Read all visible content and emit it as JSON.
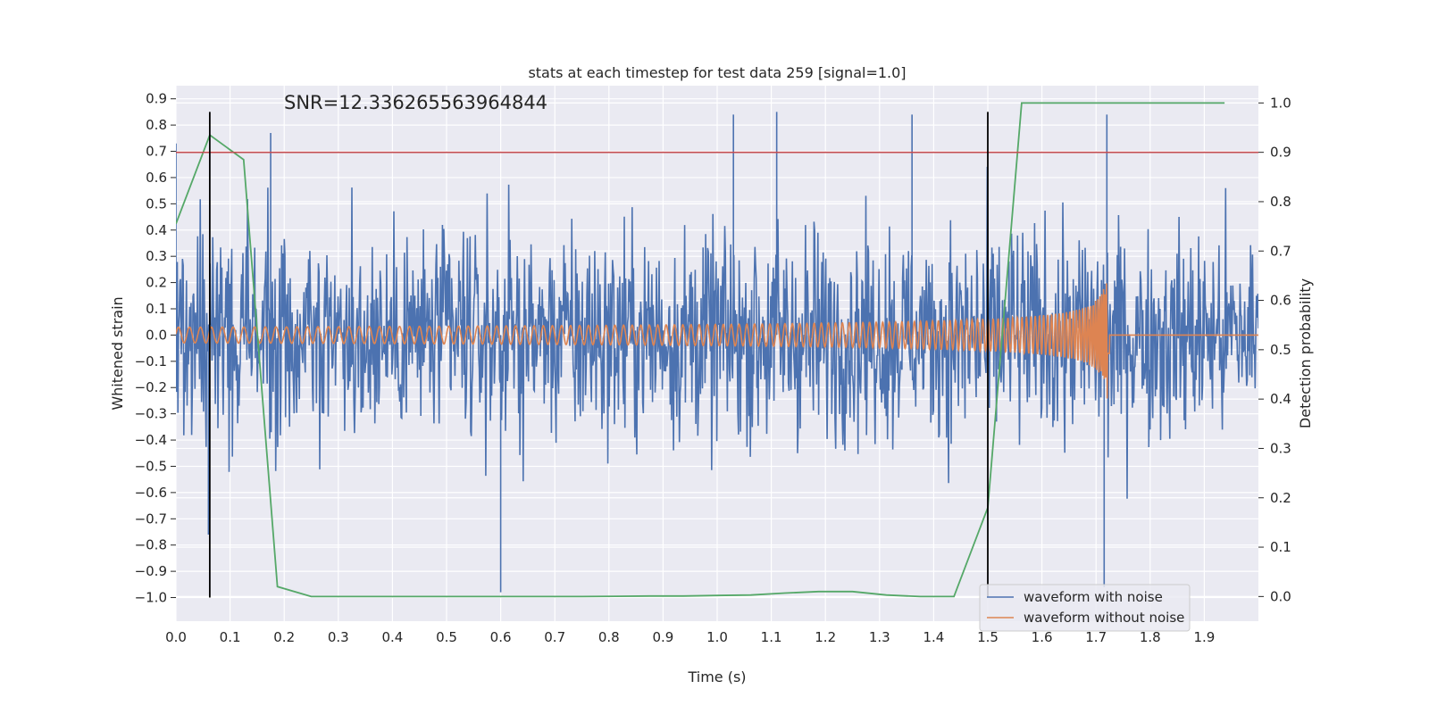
{
  "chart_data": {
    "type": "line",
    "title": "stats at each timestep for test data 259 [signal=1.0]",
    "annotation": "SNR=12.336265563964844",
    "xlabel": "Time (s)",
    "ylabel_left": "Whitened strain",
    "ylabel_right": "Detection probability",
    "xlim": [
      0.0,
      2.0
    ],
    "ylim_left": [
      -1.09,
      0.95
    ],
    "ylim_right": [
      -0.05,
      1.035
    ],
    "x_ticks": [
      "0.0",
      "0.1",
      "0.2",
      "0.3",
      "0.4",
      "0.5",
      "0.6",
      "0.7",
      "0.8",
      "0.9",
      "1.0",
      "1.1",
      "1.2",
      "1.3",
      "1.4",
      "1.5",
      "1.6",
      "1.7",
      "1.8",
      "1.9"
    ],
    "y_left_ticks": [
      "0.9",
      "0.8",
      "0.7",
      "0.6",
      "0.5",
      "0.4",
      "0.3",
      "0.2",
      "0.1",
      "0.0",
      "−0.1",
      "−0.2",
      "−0.3",
      "−0.4",
      "−0.5",
      "−0.6",
      "−0.7",
      "−0.8",
      "−0.9",
      "−1.0"
    ],
    "y_right_ticks": [
      "1.0",
      "0.9",
      "0.8",
      "0.7",
      "0.6",
      "0.5",
      "0.4",
      "0.3",
      "0.2",
      "0.1",
      "0.0"
    ],
    "grid": true,
    "legend_position": "bottom-right",
    "series": [
      {
        "name": "waveform with noise",
        "axis": "left",
        "color": "#4c72b0",
        "summary": "dense noisy strain, mostly within ±0.5, spikes to about ±0.85",
        "peaks": [
          [
            0.0,
            0.73
          ],
          [
            0.06,
            -0.76
          ],
          [
            0.175,
            0.77
          ],
          [
            0.6,
            -0.98
          ],
          [
            1.03,
            0.84
          ],
          [
            1.11,
            0.85
          ],
          [
            1.36,
            0.84
          ],
          [
            1.715,
            -0.96
          ],
          [
            1.72,
            0.84
          ]
        ]
      },
      {
        "name": "waveform without noise",
        "axis": "left",
        "color": "#dd8452",
        "summary": "chirp: amplitude ~0.03 rising to ~0.5 near 1.72 s, frequency increasing, then flat at 0.0 after 1.73 s",
        "t_merger": 1.725
      },
      {
        "axis": "right",
        "color": "#55a868",
        "x": [
          0.0,
          0.0625,
          0.125,
          0.1875,
          0.25,
          0.3125,
          0.375,
          0.4375,
          0.5,
          0.5625,
          0.625,
          0.6875,
          0.75,
          0.8125,
          0.875,
          0.9375,
          1.0,
          1.0625,
          1.125,
          1.1875,
          1.25,
          1.3125,
          1.375,
          1.4375,
          1.5,
          1.5625,
          1.625,
          1.6875,
          1.75,
          1.8125,
          1.875,
          1.9375
        ],
        "y": [
          0.755,
          0.935,
          0.885,
          0.02,
          0.0,
          0.0,
          0.0,
          0.0,
          0.0,
          0.0,
          0.0,
          0.0,
          0.0,
          0.0005,
          0.001,
          0.001,
          0.002,
          0.003,
          0.007,
          0.01,
          0.01,
          0.003,
          0.0,
          0.0,
          0.18,
          1.0,
          1.0,
          1.0,
          1.0,
          1.0,
          1.0,
          1.0
        ]
      },
      {
        "axis": "right",
        "color": "#c44e52",
        "type": "hline",
        "y": 0.9
      },
      {
        "type": "vlines",
        "color": "#000000",
        "x": [
          0.0625,
          1.5
        ],
        "y_left_range": [
          -1.0,
          0.85
        ]
      }
    ]
  }
}
